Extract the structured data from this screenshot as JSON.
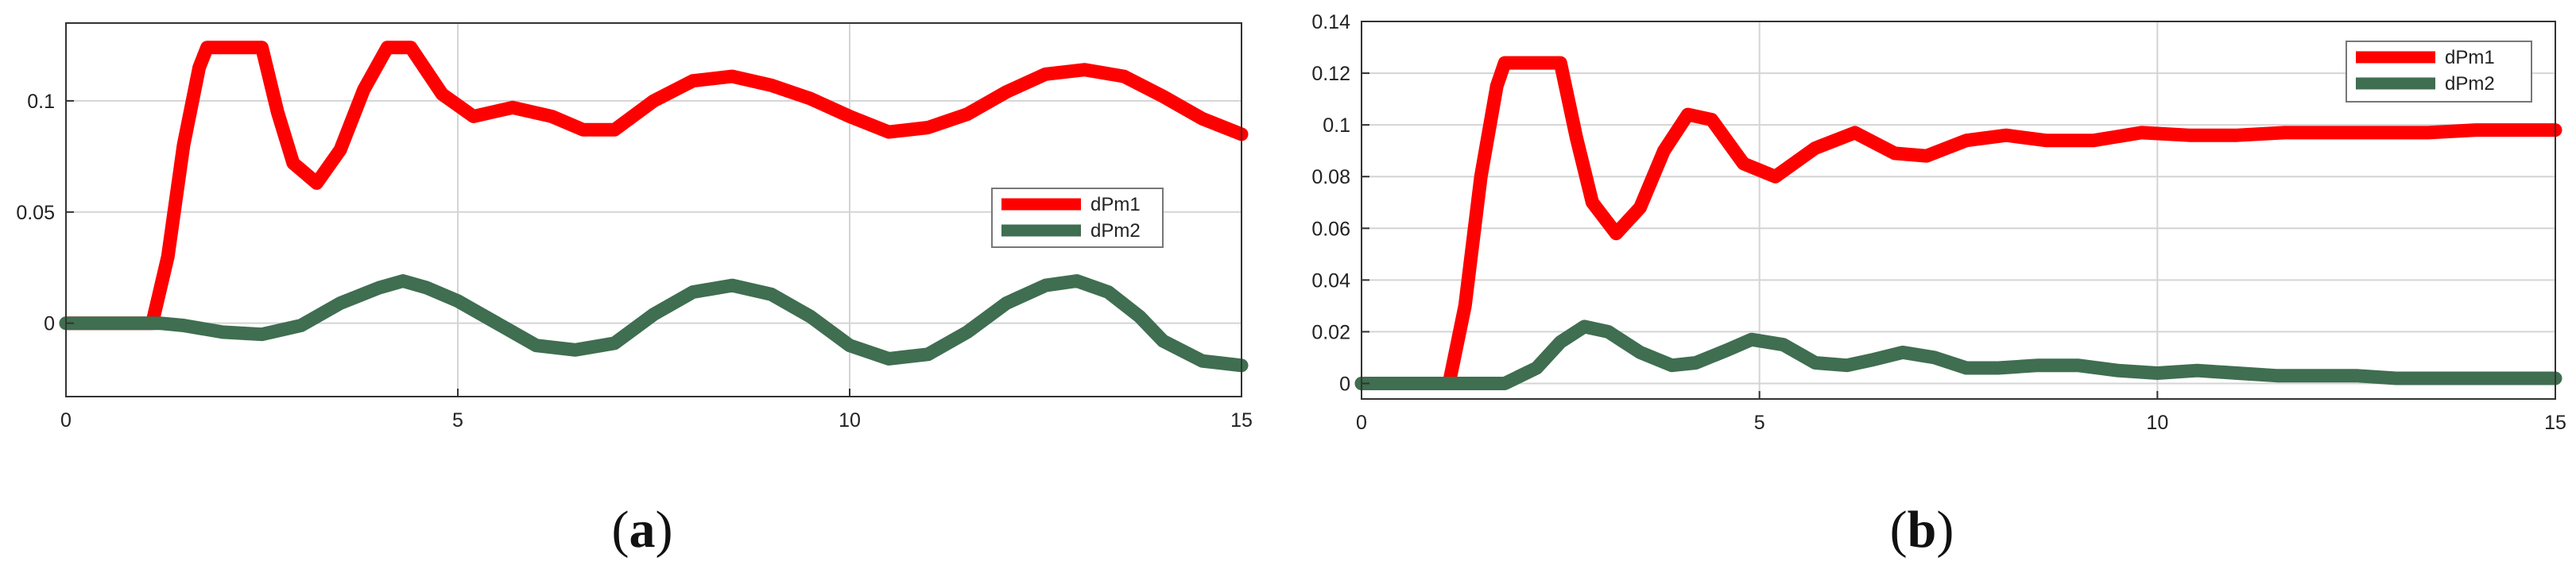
{
  "chart_data": [
    {
      "type": "line",
      "caption": "a",
      "xlim": [
        0,
        15
      ],
      "ylim": [
        -0.033,
        0.135
      ],
      "xticks": [
        0,
        5,
        10,
        15
      ],
      "yticks": [
        0,
        0.05,
        0.1
      ],
      "xtick_labels": [
        "0",
        "5",
        "10",
        "15"
      ],
      "ytick_labels": [
        "0",
        "0.05",
        "0.1"
      ],
      "grid": true,
      "legend_placement": "right",
      "series": [
        {
          "name": "dPm1",
          "color": "#ff0000",
          "x": [
            0,
            1.1,
            1.3,
            1.5,
            1.7,
            1.8,
            2.0,
            2.2,
            2.5,
            2.7,
            2.9,
            3.2,
            3.5,
            3.8,
            4.1,
            4.4,
            4.8,
            5.2,
            5.7,
            6.2,
            6.6,
            7.0,
            7.5,
            8.0,
            8.5,
            9.0,
            9.5,
            10.0,
            10.5,
            11.0,
            11.5,
            12.0,
            12.5,
            13.0,
            13.5,
            14.0,
            14.5,
            15.0
          ],
          "y": [
            0,
            0,
            0.03,
            0.08,
            0.115,
            0.124,
            0.124,
            0.124,
            0.124,
            0.095,
            0.072,
            0.063,
            0.078,
            0.105,
            0.124,
            0.124,
            0.103,
            0.093,
            0.097,
            0.093,
            0.087,
            0.087,
            0.1,
            0.109,
            0.111,
            0.107,
            0.101,
            0.093,
            0.086,
            0.088,
            0.094,
            0.104,
            0.112,
            0.114,
            0.111,
            0.102,
            0.092,
            0.085
          ]
        },
        {
          "name": "dPm2",
          "color": "#3f6e50",
          "x": [
            0,
            1.2,
            1.5,
            2.0,
            2.5,
            3.0,
            3.5,
            4.0,
            4.3,
            4.6,
            5.0,
            5.5,
            6.0,
            6.5,
            7.0,
            7.5,
            8.0,
            8.5,
            9.0,
            9.5,
            10.0,
            10.5,
            11.0,
            11.5,
            12.0,
            12.5,
            12.9,
            13.3,
            13.7,
            14.0,
            14.5,
            15.0
          ],
          "y": [
            0,
            0,
            -0.001,
            -0.004,
            -0.005,
            -0.001,
            0.009,
            0.016,
            0.019,
            0.016,
            0.01,
            0.0,
            -0.01,
            -0.012,
            -0.009,
            0.004,
            0.014,
            0.017,
            0.013,
            0.003,
            -0.01,
            -0.016,
            -0.014,
            -0.004,
            0.009,
            0.017,
            0.019,
            0.014,
            0.003,
            -0.008,
            -0.017,
            -0.019
          ]
        }
      ]
    },
    {
      "type": "line",
      "caption": "b",
      "xlim": [
        0,
        15
      ],
      "ylim": [
        -0.006,
        0.14
      ],
      "xticks": [
        0,
        5,
        10,
        15
      ],
      "yticks": [
        0,
        0.02,
        0.04,
        0.06,
        0.08,
        0.1,
        0.12,
        0.14
      ],
      "xtick_labels": [
        "0",
        "5",
        "10",
        "15"
      ],
      "ytick_labels": [
        "0",
        "0.02",
        "0.04",
        "0.06",
        "0.08",
        "0.1",
        "0.12",
        "0.14"
      ],
      "grid": true,
      "legend_placement": "top-right",
      "series": [
        {
          "name": "dPm1",
          "color": "#ff0000",
          "x": [
            0,
            1.1,
            1.3,
            1.5,
            1.7,
            1.8,
            2.0,
            2.2,
            2.5,
            2.7,
            2.9,
            3.2,
            3.5,
            3.8,
            4.1,
            4.4,
            4.8,
            5.2,
            5.7,
            6.2,
            6.7,
            7.1,
            7.6,
            8.1,
            8.6,
            9.2,
            9.8,
            10.4,
            11.0,
            11.6,
            12.2,
            12.8,
            13.4,
            14.0,
            14.5,
            15.0
          ],
          "y": [
            0,
            0,
            0.03,
            0.08,
            0.115,
            0.124,
            0.124,
            0.124,
            0.124,
            0.095,
            0.07,
            0.058,
            0.068,
            0.09,
            0.104,
            0.102,
            0.085,
            0.08,
            0.091,
            0.097,
            0.089,
            0.088,
            0.094,
            0.096,
            0.094,
            0.094,
            0.097,
            0.096,
            0.096,
            0.097,
            0.097,
            0.097,
            0.097,
            0.098,
            0.098,
            0.098
          ]
        },
        {
          "name": "dPm2",
          "color": "#3f6e50",
          "x": [
            0,
            1.5,
            1.8,
            2.2,
            2.5,
            2.8,
            3.1,
            3.5,
            3.9,
            4.2,
            4.6,
            4.9,
            5.3,
            5.7,
            6.1,
            6.4,
            6.8,
            7.2,
            7.6,
            8.0,
            8.5,
            9.0,
            9.5,
            10.0,
            10.5,
            11.0,
            11.5,
            12.0,
            12.5,
            13.0,
            13.5,
            14.0,
            14.5,
            15.0
          ],
          "y": [
            0,
            0,
            0.0,
            0.006,
            0.016,
            0.022,
            0.02,
            0.012,
            0.007,
            0.008,
            0.013,
            0.017,
            0.015,
            0.008,
            0.007,
            0.009,
            0.012,
            0.01,
            0.006,
            0.006,
            0.007,
            0.007,
            0.005,
            0.004,
            0.005,
            0.004,
            0.003,
            0.003,
            0.003,
            0.002,
            0.002,
            0.002,
            0.002,
            0.002
          ]
        }
      ]
    }
  ]
}
